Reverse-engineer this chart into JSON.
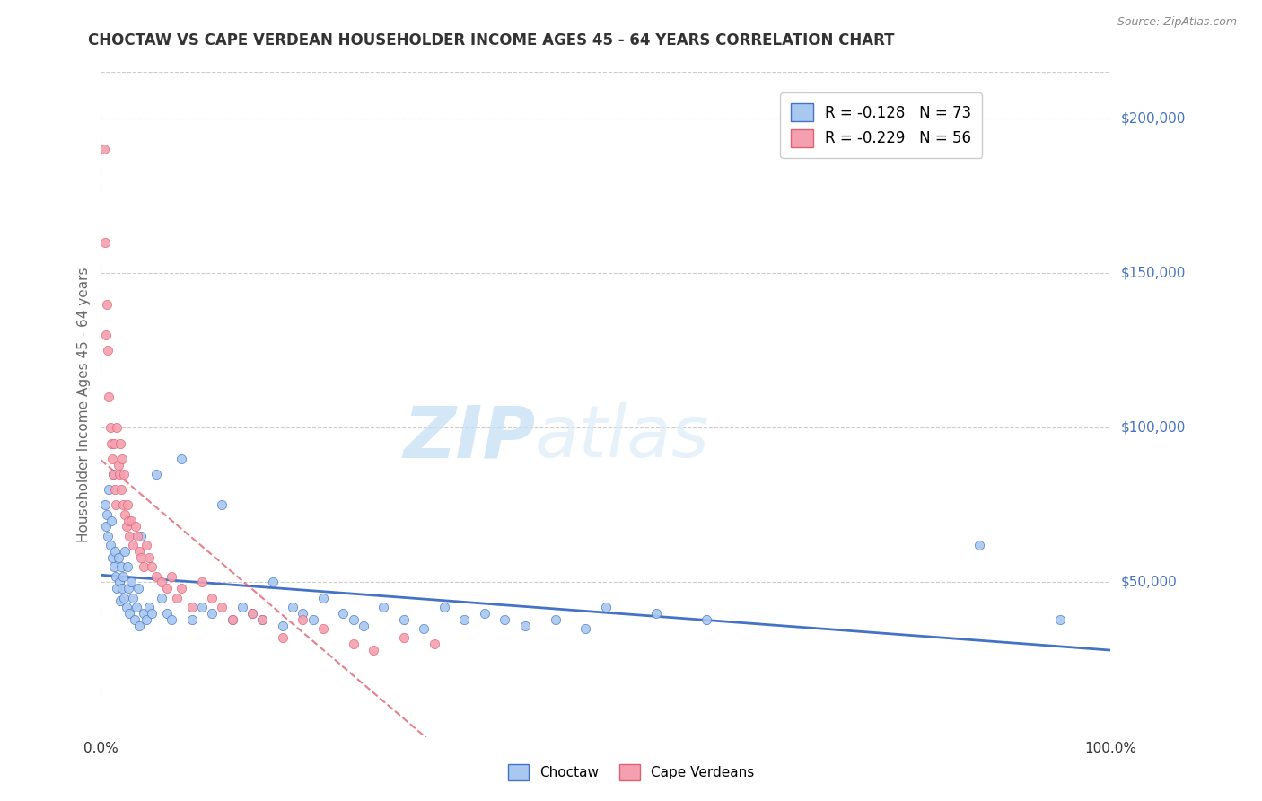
{
  "title": "CHOCTAW VS CAPE VERDEAN HOUSEHOLDER INCOME AGES 45 - 64 YEARS CORRELATION CHART",
  "source": "Source: ZipAtlas.com",
  "ylabel": "Householder Income Ages 45 - 64 years",
  "xlim": [
    0.0,
    1.0
  ],
  "ylim": [
    0,
    215000
  ],
  "yticks": [
    50000,
    100000,
    150000,
    200000
  ],
  "ytick_labels": [
    "$50,000",
    "$100,000",
    "$150,000",
    "$200,000"
  ],
  "xticks": [
    0.0,
    0.1,
    0.2,
    0.3,
    0.4,
    0.5,
    0.6,
    0.7,
    0.8,
    0.9,
    1.0
  ],
  "xtick_labels": [
    "0.0%",
    "",
    "",
    "",
    "",
    "",
    "",
    "",
    "",
    "",
    "100.0%"
  ],
  "choctaw_color": "#a8c8f0",
  "cape_verdean_color": "#f4a0b0",
  "choctaw_line_color": "#4472c4",
  "cape_verdean_line_color": "#e06070",
  "choctaw_R": -0.128,
  "choctaw_N": 73,
  "cape_verdean_R": -0.229,
  "cape_verdean_N": 56,
  "watermark_zip": "ZIP",
  "watermark_atlas": "atlas",
  "background_color": "#ffffff",
  "grid_color": "#cccccc",
  "choctaw_x": [
    0.004,
    0.005,
    0.006,
    0.007,
    0.008,
    0.009,
    0.01,
    0.011,
    0.012,
    0.013,
    0.014,
    0.015,
    0.016,
    0.017,
    0.018,
    0.019,
    0.02,
    0.021,
    0.022,
    0.023,
    0.024,
    0.025,
    0.026,
    0.027,
    0.028,
    0.03,
    0.032,
    0.033,
    0.035,
    0.037,
    0.038,
    0.04,
    0.042,
    0.045,
    0.048,
    0.05,
    0.055,
    0.06,
    0.065,
    0.07,
    0.08,
    0.09,
    0.1,
    0.11,
    0.12,
    0.13,
    0.14,
    0.15,
    0.16,
    0.17,
    0.18,
    0.19,
    0.2,
    0.21,
    0.22,
    0.24,
    0.25,
    0.26,
    0.28,
    0.3,
    0.32,
    0.34,
    0.36,
    0.38,
    0.4,
    0.42,
    0.45,
    0.48,
    0.5,
    0.55,
    0.6,
    0.87,
    0.95
  ],
  "choctaw_y": [
    75000,
    68000,
    72000,
    65000,
    80000,
    62000,
    70000,
    58000,
    85000,
    55000,
    60000,
    52000,
    48000,
    58000,
    50000,
    44000,
    55000,
    48000,
    52000,
    45000,
    60000,
    42000,
    55000,
    48000,
    40000,
    50000,
    45000,
    38000,
    42000,
    48000,
    36000,
    65000,
    40000,
    38000,
    42000,
    40000,
    85000,
    45000,
    40000,
    38000,
    90000,
    38000,
    42000,
    40000,
    75000,
    38000,
    42000,
    40000,
    38000,
    50000,
    36000,
    42000,
    40000,
    38000,
    45000,
    40000,
    38000,
    36000,
    42000,
    38000,
    35000,
    42000,
    38000,
    40000,
    38000,
    36000,
    38000,
    35000,
    42000,
    40000,
    38000,
    62000,
    38000
  ],
  "cape_verdean_x": [
    0.003,
    0.004,
    0.005,
    0.006,
    0.007,
    0.008,
    0.009,
    0.01,
    0.011,
    0.012,
    0.013,
    0.014,
    0.015,
    0.016,
    0.017,
    0.018,
    0.019,
    0.02,
    0.021,
    0.022,
    0.023,
    0.024,
    0.025,
    0.026,
    0.027,
    0.028,
    0.03,
    0.032,
    0.034,
    0.036,
    0.038,
    0.04,
    0.042,
    0.045,
    0.048,
    0.05,
    0.055,
    0.06,
    0.065,
    0.07,
    0.075,
    0.08,
    0.09,
    0.1,
    0.11,
    0.12,
    0.13,
    0.15,
    0.16,
    0.18,
    0.2,
    0.22,
    0.25,
    0.27,
    0.3,
    0.33
  ],
  "cape_verdean_y": [
    190000,
    160000,
    130000,
    140000,
    125000,
    110000,
    100000,
    95000,
    90000,
    85000,
    95000,
    80000,
    75000,
    100000,
    88000,
    85000,
    95000,
    80000,
    90000,
    75000,
    85000,
    72000,
    68000,
    75000,
    70000,
    65000,
    70000,
    62000,
    68000,
    65000,
    60000,
    58000,
    55000,
    62000,
    58000,
    55000,
    52000,
    50000,
    48000,
    52000,
    45000,
    48000,
    42000,
    50000,
    45000,
    42000,
    38000,
    40000,
    38000,
    32000,
    38000,
    35000,
    30000,
    28000,
    32000,
    30000
  ]
}
